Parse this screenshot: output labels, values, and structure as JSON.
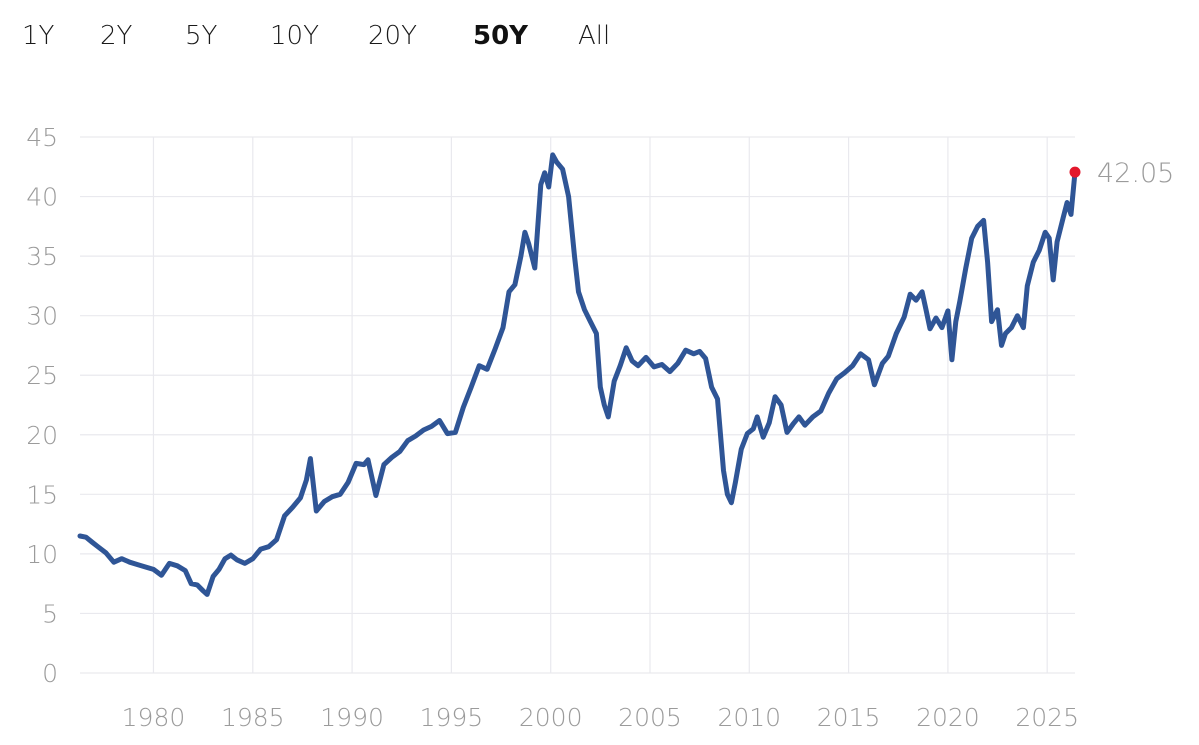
{
  "range_tabs": [
    {
      "label": "1Y",
      "active": false
    },
    {
      "label": "2Y",
      "active": false
    },
    {
      "label": "5Y",
      "active": false
    },
    {
      "label": "10Y",
      "active": false
    },
    {
      "label": "20Y",
      "active": false
    },
    {
      "label": "50Y",
      "active": true
    },
    {
      "label": "All",
      "active": false
    }
  ],
  "chart_data": {
    "type": "line",
    "title": "",
    "xlabel": "",
    "ylabel": "",
    "xlim": [
      1976.3,
      2026.4
    ],
    "ylim": [
      0,
      45
    ],
    "x_ticks": [
      1980,
      1985,
      1990,
      1995,
      2000,
      2005,
      2010,
      2015,
      2020,
      2025
    ],
    "y_ticks": [
      0,
      5,
      10,
      15,
      20,
      25,
      30,
      35,
      40,
      45
    ],
    "grid": true,
    "legend": "none",
    "last_value_label": "42.05",
    "colors": {
      "line": "#2f5596",
      "last_point": "#e3172c",
      "grid": "#e9e9ee",
      "labels": "#9b9b9b"
    },
    "series": [
      {
        "x": [
          1976.3,
          1976.6,
          1976.9,
          1977.2,
          1977.6,
          1978.0,
          1978.4,
          1978.8,
          1979.2,
          1979.6,
          1980.0,
          1980.4,
          1980.8,
          1981.2,
          1981.6,
          1981.9,
          1982.2,
          1982.5,
          1982.7,
          1983.0,
          1983.3,
          1983.6,
          1983.9,
          1984.2,
          1984.6,
          1985.0,
          1985.4,
          1985.8,
          1986.2,
          1986.6,
          1987.0,
          1987.4,
          1987.7,
          1987.9,
          1988.2,
          1988.6,
          1989.0,
          1989.4,
          1989.8,
          1990.2,
          1990.6,
          1990.8,
          1991.2,
          1991.6,
          1992.0,
          1992.4,
          1992.8,
          1993.2,
          1993.6,
          1994.0,
          1994.4,
          1994.8,
          1995.2,
          1995.6,
          1996.0,
          1996.4,
          1996.8,
          1997.2,
          1997.6,
          1997.9,
          1998.2,
          1998.5,
          1998.7,
          1998.9,
          1999.2,
          1999.5,
          1999.7,
          1999.9,
          2000.1,
          2000.3,
          2000.6,
          2000.9,
          2001.2,
          2001.4,
          2001.7,
          2002.0,
          2002.3,
          2002.5,
          2002.7,
          2002.9,
          2003.2,
          2003.5,
          2003.8,
          2004.1,
          2004.4,
          2004.8,
          2005.2,
          2005.6,
          2006.0,
          2006.4,
          2006.8,
          2007.2,
          2007.5,
          2007.8,
          2008.1,
          2008.4,
          2008.7,
          2008.9,
          2009.1,
          2009.3,
          2009.6,
          2009.9,
          2010.2,
          2010.4,
          2010.7,
          2011.0,
          2011.3,
          2011.6,
          2011.9,
          2012.2,
          2012.5,
          2012.8,
          2013.2,
          2013.6,
          2014.0,
          2014.4,
          2014.8,
          2015.2,
          2015.6,
          2016.0,
          2016.3,
          2016.7,
          2017.0,
          2017.4,
          2017.8,
          2018.1,
          2018.4,
          2018.7,
          2018.9,
          2019.1,
          2019.4,
          2019.7,
          2020.0,
          2020.2,
          2020.4,
          2020.6,
          2020.9,
          2021.2,
          2021.5,
          2021.8,
          2022.0,
          2022.2,
          2022.5,
          2022.7,
          2022.9,
          2023.2,
          2023.5,
          2023.8,
          2024.0,
          2024.3,
          2024.6,
          2024.9,
          2025.1,
          2025.3,
          2025.5,
          2025.8,
          2026.0,
          2026.2,
          2026.4
        ],
        "values": [
          11.5,
          11.4,
          11.0,
          10.6,
          10.1,
          9.3,
          9.6,
          9.3,
          9.1,
          8.9,
          8.7,
          8.2,
          9.2,
          9.0,
          8.6,
          7.5,
          7.4,
          6.9,
          6.6,
          8.1,
          8.7,
          9.6,
          9.9,
          9.5,
          9.2,
          9.6,
          10.4,
          10.6,
          11.2,
          13.2,
          13.9,
          14.7,
          16.2,
          18.0,
          13.6,
          14.4,
          14.8,
          15.0,
          16.0,
          17.6,
          17.5,
          17.9,
          14.9,
          17.5,
          18.1,
          18.6,
          19.5,
          19.9,
          20.4,
          20.7,
          21.2,
          20.1,
          20.2,
          22.3,
          24.0,
          25.8,
          25.5,
          27.2,
          29.0,
          32.0,
          32.6,
          35.0,
          37.0,
          36.0,
          34.0,
          41.0,
          42.0,
          40.8,
          43.5,
          42.9,
          42.3,
          40.0,
          35.0,
          32.0,
          30.5,
          29.5,
          28.5,
          24.0,
          22.5,
          21.5,
          24.5,
          25.8,
          27.3,
          26.2,
          25.8,
          26.5,
          25.7,
          25.9,
          25.3,
          26.0,
          27.1,
          26.8,
          27.0,
          26.4,
          24.0,
          23.0,
          17.0,
          15.0,
          14.3,
          16.0,
          18.8,
          20.1,
          20.5,
          21.5,
          19.8,
          21.0,
          23.2,
          22.5,
          20.2,
          20.9,
          21.5,
          20.8,
          21.5,
          22.0,
          23.5,
          24.7,
          25.2,
          25.8,
          26.8,
          26.3,
          24.2,
          26.0,
          26.6,
          28.5,
          29.9,
          31.8,
          31.3,
          32.0,
          30.5,
          28.9,
          29.8,
          29.0,
          30.4,
          26.3,
          29.5,
          31.2,
          34.0,
          36.5,
          37.5,
          38.0,
          34.5,
          29.5,
          30.5,
          27.5,
          28.5,
          29.0,
          30.0,
          29.0,
          32.5,
          34.5,
          35.5,
          37.0,
          36.5,
          33.0,
          36.2,
          38.2,
          39.5,
          38.5,
          42.05
        ]
      }
    ]
  }
}
